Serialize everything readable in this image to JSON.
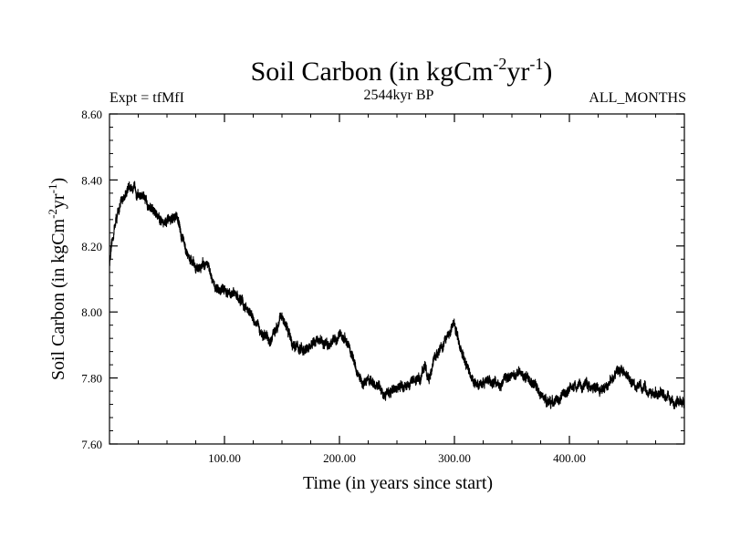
{
  "chart_data": {
    "type": "line",
    "title_main": "Soil Carbon (in kgCm",
    "title_sup1": "-2",
    "title_mid": "yr",
    "title_sup2": "-1",
    "title_end": ")",
    "subtitle_left": "Expt = tfMfI",
    "subtitle_center": "2544kyr BP",
    "subtitle_right": "ALL_MONTHS",
    "xlabel": "Time (in years since start)",
    "ylabel_main": "Soil Carbon (in kgCm",
    "ylabel_sup1": "-2",
    "ylabel_mid": "yr",
    "ylabel_sup2": "-1",
    "ylabel_end": ")",
    "xlim": [
      0,
      500
    ],
    "ylim": [
      7.6,
      8.6
    ],
    "x_ticks": [
      100,
      200,
      300,
      400
    ],
    "x_tick_labels": [
      "100.00",
      "200.00",
      "300.00",
      "400.00"
    ],
    "y_ticks": [
      7.6,
      7.8,
      8.0,
      8.2,
      8.4,
      8.6
    ],
    "y_tick_labels": [
      "7.60",
      "7.80",
      "8.00",
      "8.20",
      "8.40",
      "8.60"
    ],
    "series": [
      {
        "name": "Soil Carbon",
        "color": "#000000",
        "noise_amplitude": 0.015,
        "x": [
          0,
          5,
          10,
          15,
          20,
          25,
          30,
          35,
          40,
          45,
          50,
          55,
          58,
          62,
          66,
          70,
          75,
          80,
          85,
          90,
          95,
          100,
          110,
          120,
          130,
          140,
          145,
          150,
          155,
          160,
          170,
          180,
          190,
          200,
          205,
          210,
          215,
          220,
          225,
          230,
          235,
          240,
          245,
          250,
          260,
          270,
          275,
          278,
          282,
          290,
          295,
          300,
          305,
          310,
          315,
          320,
          330,
          340,
          350,
          360,
          370,
          380,
          390,
          400,
          410,
          420,
          430,
          440,
          445,
          450,
          460,
          470,
          480,
          490,
          500
        ],
        "values": [
          8.15,
          8.27,
          8.33,
          8.37,
          8.38,
          8.36,
          8.34,
          8.32,
          8.3,
          8.28,
          8.27,
          8.28,
          8.29,
          8.24,
          8.2,
          8.16,
          8.13,
          8.14,
          8.15,
          8.08,
          8.07,
          8.07,
          8.05,
          8.01,
          7.95,
          7.9,
          7.96,
          7.99,
          7.94,
          7.9,
          7.88,
          7.91,
          7.9,
          7.93,
          7.92,
          7.88,
          7.82,
          7.78,
          7.8,
          7.78,
          7.77,
          7.75,
          7.76,
          7.77,
          7.78,
          7.8,
          7.84,
          7.78,
          7.86,
          7.9,
          7.94,
          7.96,
          7.9,
          7.84,
          7.8,
          7.78,
          7.79,
          7.78,
          7.82,
          7.81,
          7.78,
          7.72,
          7.73,
          7.77,
          7.78,
          7.78,
          7.76,
          7.81,
          7.83,
          7.8,
          7.77,
          7.76,
          7.75,
          7.73,
          7.72
        ]
      }
    ]
  }
}
